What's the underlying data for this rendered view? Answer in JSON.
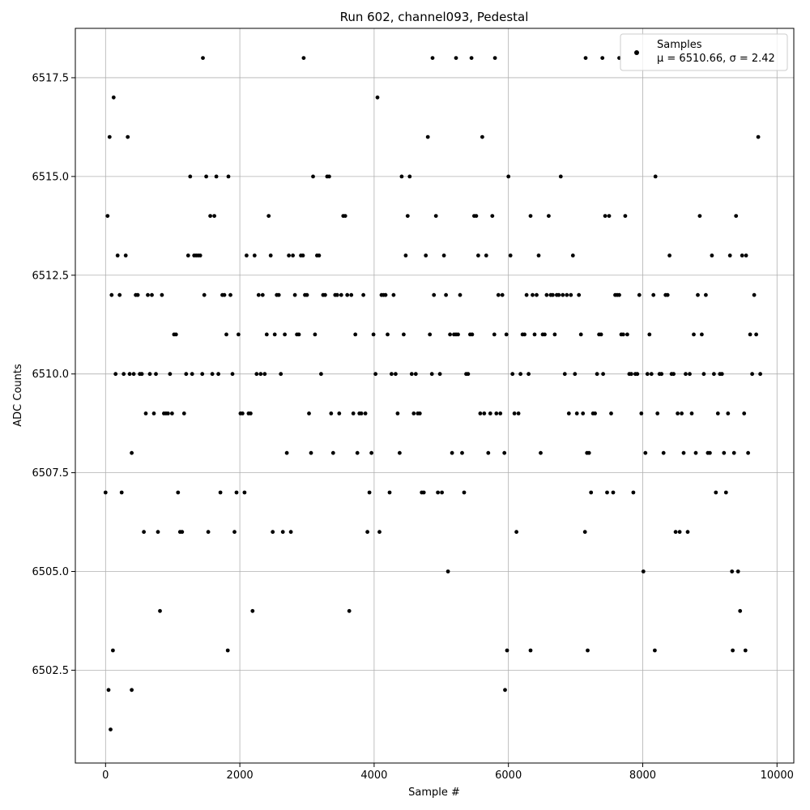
{
  "chart_data": {
    "type": "scatter",
    "title": "Run 602, channel093, Pedestal",
    "xlabel": "Sample #",
    "ylabel": "ADC Counts",
    "xlim": [
      -450,
      10250
    ],
    "ylim": [
      6500.15,
      6518.75
    ],
    "x_ticks": [
      0,
      2000,
      4000,
      6000,
      8000,
      10000
    ],
    "x_tick_labels": [
      "0",
      "2000",
      "4000",
      "6000",
      "8000",
      "10000"
    ],
    "y_ticks": [
      6502.5,
      6505.0,
      6507.5,
      6510.0,
      6512.5,
      6515.0,
      6517.5
    ],
    "y_tick_labels": [
      "6502.5",
      "6505.0",
      "6507.5",
      "6510.0",
      "6512.5",
      "6515.0",
      "6517.5"
    ],
    "grid": true,
    "marker_color": "#000000",
    "legend": {
      "placement": "top-right",
      "series_label": "Samples",
      "stats_label": "μ = 6510.66, σ = 2.42"
    },
    "series": [
      {
        "name": "Samples",
        "n_samples": 9750,
        "sample_step": 30,
        "mean": 6510.66,
        "sigma": 2.42,
        "y_min": 6501,
        "y_max": 6518,
        "levels": [
          6501,
          6502,
          6503,
          6504,
          6505,
          6506,
          6507,
          6508,
          6509,
          6510,
          6511,
          6512,
          6513,
          6514,
          6515,
          6516,
          6517,
          6518
        ],
        "outliers": [
          [
            75,
            6501
          ],
          [
            45,
            6502
          ],
          [
            390,
            6502
          ],
          [
            5950,
            6502
          ],
          [
            110,
            6503
          ],
          [
            1820,
            6503
          ],
          [
            5980,
            6503
          ],
          [
            6330,
            6503
          ],
          [
            7180,
            6503
          ],
          [
            8180,
            6503
          ],
          [
            9340,
            6503
          ],
          [
            9530,
            6503
          ],
          [
            1450,
            6518
          ],
          [
            2950,
            6518
          ],
          [
            4870,
            6518
          ],
          [
            5220,
            6518
          ],
          [
            5450,
            6518
          ],
          [
            5800,
            6518
          ],
          [
            7150,
            6518
          ],
          [
            7400,
            6518
          ],
          [
            7650,
            6518
          ]
        ]
      }
    ]
  }
}
